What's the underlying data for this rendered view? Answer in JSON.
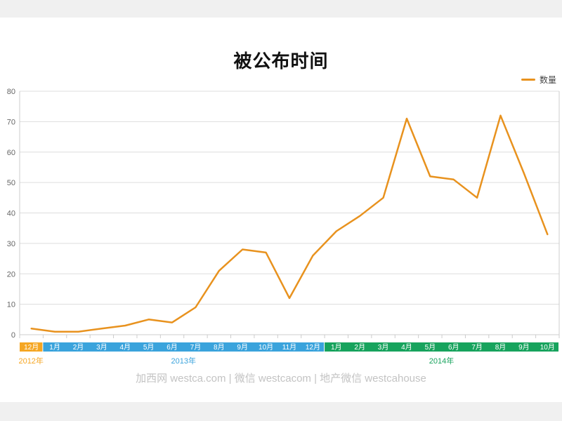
{
  "page": {
    "title": "被公布时间",
    "footer": "加西网 westca.com | 微信 westcacom | 地产微信 westcahouse"
  },
  "legend": {
    "label": "数量"
  },
  "colors": {
    "line": "#e8921e",
    "band_2012": "#f5a623",
    "band_2013": "#3aa3dc",
    "band_2014": "#17a35d",
    "grid": "#dddddd",
    "axis": "#cccccc",
    "axis_text": "#666666",
    "title_text": "#111111",
    "footer_text": "#c3c3c3",
    "page_bg": "#f0f0f0",
    "card_bg": "#ffffff",
    "month_text": "#ffffff"
  },
  "chart_data": {
    "type": "line",
    "title": "被公布时间",
    "categories": [
      "12月",
      "1月",
      "2月",
      "3月",
      "4月",
      "5月",
      "6月",
      "7月",
      "8月",
      "9月",
      "10月",
      "11月",
      "12月",
      "1月",
      "2月",
      "3月",
      "4月",
      "5月",
      "6月",
      "7月",
      "8月",
      "9月",
      "10月"
    ],
    "series": [
      {
        "name": "数量",
        "color": "#e8921e",
        "values": [
          2,
          1,
          1,
          2,
          3,
          5,
          4,
          9,
          21,
          28,
          27,
          12,
          26,
          34,
          39,
          45,
          71,
          52,
          51,
          45,
          72,
          53,
          33
        ]
      }
    ],
    "year_groups": [
      {
        "label": "2012年",
        "color": "#f5a623",
        "count": 1
      },
      {
        "label": "2013年",
        "color": "#3aa3dc",
        "count": 12
      },
      {
        "label": "2014年",
        "color": "#17a35d",
        "count": 10
      }
    ],
    "ylim": [
      0,
      80
    ],
    "yticks": [
      0,
      10,
      20,
      30,
      40,
      50,
      60,
      70,
      80
    ],
    "xlabel": "",
    "ylabel": "",
    "grid": true,
    "legend_position": "top-right"
  }
}
